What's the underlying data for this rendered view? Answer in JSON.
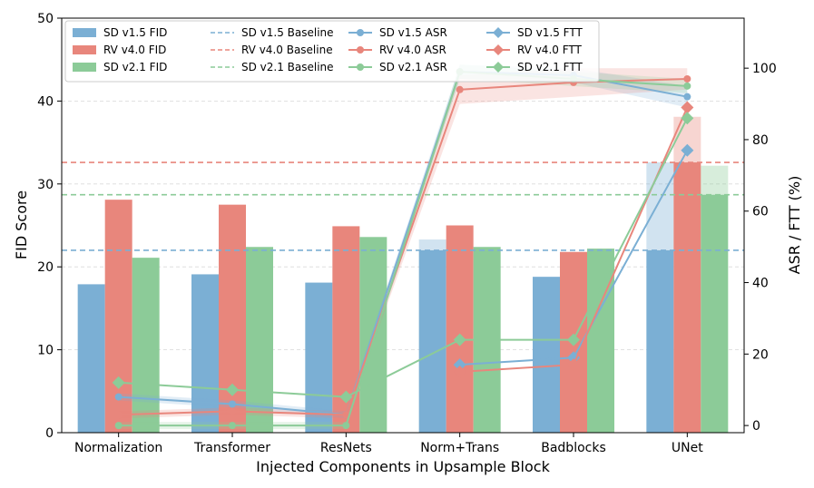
{
  "chart_data": {
    "type": "bar",
    "categories": [
      "Normalization",
      "Transformer",
      "ResNets",
      "Norm+Trans",
      "Badblocks",
      "UNet"
    ],
    "xlabel": "Injected Components in Upsample Block",
    "ylabel": "FID Score",
    "y2label": "ASR / FTT (%)",
    "ylim": [
      0,
      50
    ],
    "y2lim": [
      -2,
      114
    ],
    "yticks": [
      0,
      10,
      20,
      30,
      40,
      50
    ],
    "y2ticks": [
      0,
      20,
      40,
      60,
      80,
      100
    ],
    "grid": true,
    "legend_position": "top-left",
    "colors": {
      "sd15": "#7bafd4",
      "rv40": "#e8867c",
      "sd21": "#8ccb98"
    },
    "fid_series": [
      {
        "name": "SD v1.5 FID",
        "color_key": "sd15",
        "values": [
          17.9,
          19.1,
          18.1,
          22.0,
          18.8,
          22.0
        ],
        "upper": [
          17.9,
          19.1,
          18.1,
          23.3,
          18.8,
          32.6
        ]
      },
      {
        "name": "RV v4.0 FID",
        "color_key": "rv40",
        "values": [
          28.1,
          27.5,
          24.9,
          25.0,
          21.8,
          32.6
        ],
        "upper": [
          28.1,
          27.5,
          24.9,
          25.0,
          21.8,
          38.1
        ]
      },
      {
        "name": "SD v2.1 FID",
        "color_key": "sd21",
        "values": [
          21.1,
          22.4,
          23.6,
          22.4,
          22.2,
          28.7
        ],
        "upper": [
          21.1,
          22.4,
          23.6,
          22.4,
          22.2,
          32.2
        ]
      }
    ],
    "baselines": [
      {
        "name": "SD v1.5 Baseline",
        "color_key": "sd15",
        "value": 22.0
      },
      {
        "name": "RV v4.0 Baseline",
        "color_key": "rv40",
        "value": 32.6
      },
      {
        "name": "SD v2.1 Baseline",
        "color_key": "sd21",
        "value": 28.7
      }
    ],
    "asr_series": [
      {
        "name": "SD v1.5 ASR",
        "color_key": "sd15",
        "values": [
          8,
          6,
          3,
          99,
          98,
          92
        ],
        "band": [
          1,
          1,
          1,
          2,
          2,
          3
        ]
      },
      {
        "name": "RV v4.0 ASR",
        "color_key": "rv40",
        "values": [
          3,
          4,
          3,
          94,
          96,
          97
        ],
        "band": [
          1,
          1,
          1,
          4,
          4,
          3
        ]
      },
      {
        "name": "SD v2.1 ASR",
        "color_key": "sd21",
        "values": [
          0,
          0,
          0,
          99,
          97,
          95
        ],
        "band": [
          1,
          1,
          1,
          2,
          2,
          2
        ]
      }
    ],
    "ftt_series": [
      {
        "name": "SD v1.5 FTT",
        "color_key": "sd15",
        "values": [
          null,
          null,
          null,
          17,
          19,
          77
        ]
      },
      {
        "name": "RV v4.0 FTT",
        "color_key": "rv40",
        "values": [
          null,
          null,
          null,
          15,
          17,
          89
        ]
      },
      {
        "name": "SD v2.1 FTT",
        "color_key": "sd21",
        "values": [
          12,
          10,
          8,
          24,
          24,
          86
        ]
      }
    ],
    "legend": [
      [
        "SD v1.5 FID",
        "RV v4.0 FID",
        "SD v2.1 FID"
      ],
      [
        "SD v1.5 Baseline",
        "RV v4.0 Baseline",
        "SD v2.1 Baseline"
      ],
      [
        "SD v1.5 ASR",
        "RV v4.0 ASR",
        "SD v2.1 ASR"
      ],
      [
        "SD v1.5 FTT",
        "RV v4.0 FTT",
        "SD v2.1 FTT"
      ]
    ]
  }
}
